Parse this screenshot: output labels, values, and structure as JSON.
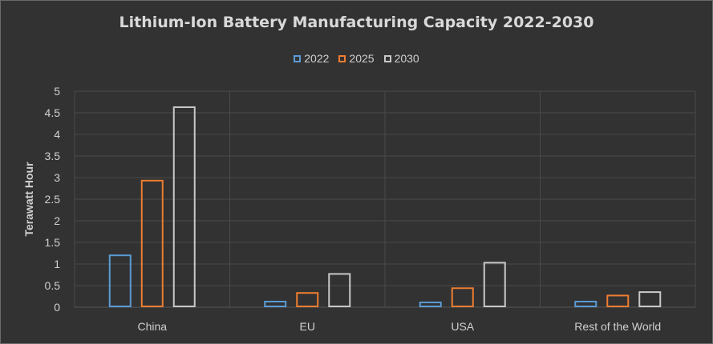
{
  "chart_data": {
    "type": "bar",
    "title": "Lithium-Ion Battery Manufacturing Capacity 2022-2030",
    "xlabel": "",
    "ylabel": "Terawatt Hour",
    "categories": [
      "China",
      "EU",
      "USA",
      "Rest of the World"
    ],
    "series": [
      {
        "name": "2022",
        "color": "#5b9bd5",
        "values": [
          1.2,
          0.13,
          0.11,
          0.13
        ]
      },
      {
        "name": "2025",
        "color": "#ed7d31",
        "values": [
          2.93,
          0.33,
          0.44,
          0.27
        ]
      },
      {
        "name": "2030",
        "color": "#c8c8c8",
        "values": [
          4.63,
          0.77,
          1.03,
          0.35
        ]
      }
    ],
    "ylim": [
      0,
      5
    ],
    "yticks": [
      "0",
      "0.5",
      "1",
      "1.5",
      "2",
      "2.5",
      "3",
      "3.5",
      "4",
      "4.5",
      "5"
    ],
    "grid": true,
    "legend_position": "top"
  }
}
